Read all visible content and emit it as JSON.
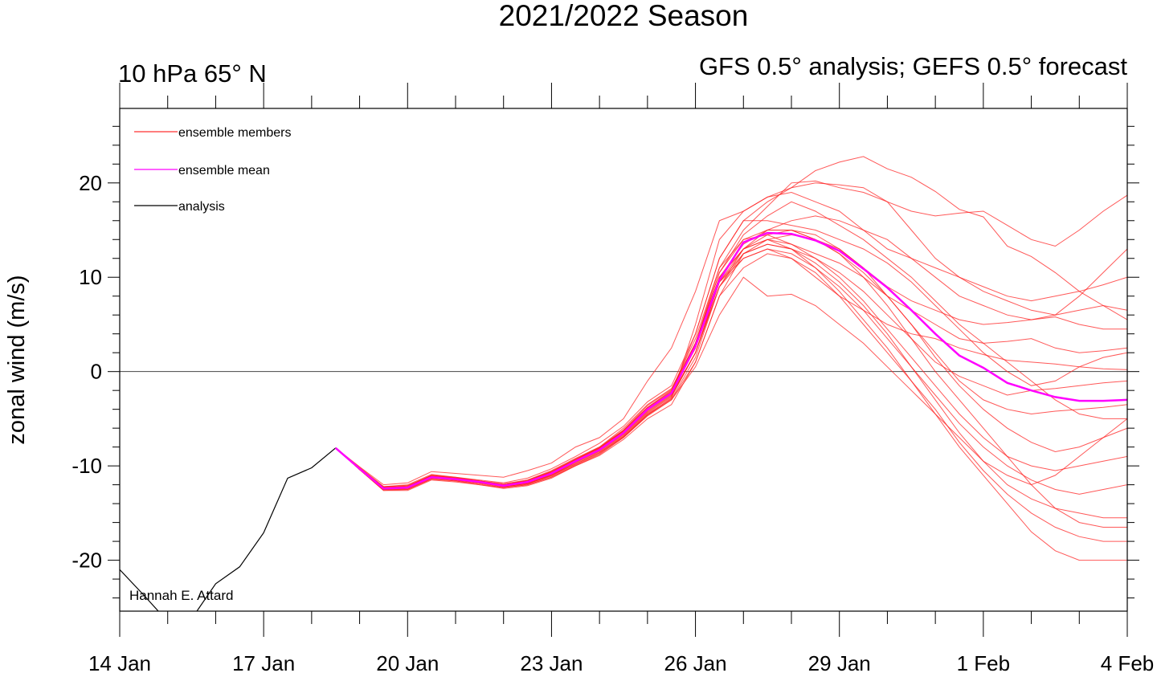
{
  "chart_data": {
    "type": "line",
    "title": "2021/2022 Season",
    "left_subtitle": "10 hPa 65° N",
    "right_subtitle": "GFS 0.5° analysis; GEFS 0.5° forecast",
    "ylabel": "zonal wind (m/s)",
    "xlabel": "",
    "credit": "Hannah E. Attard",
    "x_units": "days since 14 Jan",
    "xlim": [
      0,
      21
    ],
    "ylim": [
      -25.4,
      27.9
    ],
    "x_ticks": [
      {
        "day": 0,
        "label": "14 Jan"
      },
      {
        "day": 3,
        "label": "17 Jan"
      },
      {
        "day": 6,
        "label": "20 Jan"
      },
      {
        "day": 9,
        "label": "23 Jan"
      },
      {
        "day": 12,
        "label": "26 Jan"
      },
      {
        "day": 15,
        "label": "29 Jan"
      },
      {
        "day": 18,
        "label": "1 Feb"
      },
      {
        "day": 21,
        "label": "4 Feb"
      }
    ],
    "y_ticks": [
      -20,
      -10,
      0,
      10,
      20
    ],
    "y_tick_labels": [
      "-20",
      "-10",
      "0",
      "10",
      "20"
    ],
    "legend": {
      "placement": "top-left",
      "entries": [
        {
          "label": "ensemble members",
          "color": "#ff3030"
        },
        {
          "label": "ensemble mean",
          "color": "#ff00ff"
        },
        {
          "label": "analysis",
          "color": "#000000"
        }
      ]
    },
    "analysis": {
      "x": [
        0,
        0.5,
        1,
        1.5,
        2,
        2.5,
        3,
        3.5,
        4,
        4.5
      ],
      "y": [
        -21.0,
        -23.7,
        -26.5,
        -26.2,
        -22.5,
        -20.7,
        -17.1,
        -11.3,
        -10.2,
        -8.1
      ]
    },
    "forecast_x_start": 4.5,
    "forecast_x_step": 0.5,
    "ensemble_mean": [
      -8.1,
      -10.3,
      -12.4,
      -12.3,
      -11.2,
      -11.4,
      -11.7,
      -12.1,
      -11.7,
      -10.8,
      -9.5,
      -8.3,
      -6.5,
      -4.0,
      -2.3,
      2.7,
      9.7,
      13.7,
      14.7,
      14.6,
      13.9,
      12.8,
      10.9,
      8.9,
      6.5,
      4.0,
      1.7,
      0.4,
      -1.2,
      -2.0,
      -2.7,
      -3.1,
      -3.1,
      -3.0
    ],
    "ensemble_members": [
      [
        -8.1,
        -10.2,
        -12.2,
        -12.0,
        -10.9,
        -11.2,
        -11.5,
        -11.8,
        -11.3,
        -10.3,
        -9.0,
        -7.6,
        -5.8,
        -3.2,
        -1.5,
        4,
        12,
        16,
        18,
        19.5,
        20,
        19.8,
        19.5,
        18,
        17,
        16.5,
        16.8,
        17,
        15.5,
        14,
        13.3,
        15,
        17,
        18.7
      ],
      [
        -8.1,
        -10.4,
        -12.5,
        -12.5,
        -11.4,
        -11.6,
        -11.9,
        -12.3,
        -12.0,
        -11.2,
        -10.0,
        -8.8,
        -7.0,
        -4.6,
        -2.8,
        5,
        14,
        17,
        18.5,
        19.5,
        21.3,
        22.2,
        22.8,
        21.5,
        20.6,
        19.1,
        17.2,
        16.4,
        13.3,
        12.2,
        10.5,
        8.5,
        7,
        5.5
      ],
      [
        -8.1,
        -10.3,
        -12.3,
        -12.2,
        -11.0,
        -11.3,
        -11.6,
        -12.0,
        -11.5,
        -10.5,
        -9.2,
        -8.0,
        -6.0,
        -3.5,
        -1.8,
        3,
        11,
        15,
        17.5,
        20,
        20.2,
        19.5,
        19,
        18,
        15,
        12,
        10,
        8.5,
        7.5,
        6.5,
        6,
        8,
        10.5,
        13
      ],
      [
        -8.1,
        -10.1,
        -12.0,
        -11.8,
        -10.6,
        -10.8,
        -11.0,
        -11.2,
        -10.5,
        -9.7,
        -8.0,
        -7.0,
        -5.0,
        -1.0,
        2.5,
        8.5,
        16,
        17,
        18.5,
        19,
        18,
        17,
        15,
        13,
        12,
        11,
        10,
        9,
        8,
        7.5,
        8,
        8.5,
        9.2,
        10
      ],
      [
        -8.1,
        -10.3,
        -12.4,
        -12.3,
        -11.2,
        -11.5,
        -11.8,
        -12.2,
        -11.9,
        -11.0,
        -9.6,
        -8.4,
        -6.6,
        -4.2,
        -2.5,
        2,
        9,
        13,
        15,
        16,
        16.5,
        16,
        15,
        14,
        12,
        10,
        8,
        7,
        6,
        5.5,
        6,
        6.5,
        7,
        6.5
      ],
      [
        -8.1,
        -10.4,
        -12.6,
        -12.6,
        -11.5,
        -11.7,
        -12.0,
        -12.4,
        -12.1,
        -11.3,
        -10.0,
        -8.9,
        -7.2,
        -5.0,
        -3.5,
        1,
        8,
        12.5,
        14,
        14.5,
        14,
        13,
        11,
        9,
        7.5,
        6.5,
        5.5,
        5,
        5.2,
        5.5,
        5.8,
        5,
        4.5,
        4.5
      ],
      [
        -8.1,
        -10.2,
        -12.2,
        -12.1,
        -11.0,
        -11.2,
        -11.6,
        -12.0,
        -11.6,
        -10.6,
        -9.3,
        -8.1,
        -6.2,
        -3.8,
        -2.0,
        3,
        10,
        13,
        14,
        13.5,
        12.5,
        11.5,
        10,
        8,
        6.5,
        5,
        3.5,
        3.0,
        3.2,
        3.5,
        2.5,
        2,
        2.2,
        2.5
      ],
      [
        -8.1,
        -10.3,
        -12.4,
        -12.4,
        -11.3,
        -11.5,
        -11.8,
        -12.1,
        -11.8,
        -10.9,
        -9.6,
        -8.4,
        -6.7,
        -4.3,
        -2.6,
        2,
        9.5,
        12,
        13,
        12,
        10,
        8,
        6.5,
        5,
        4,
        3.5,
        2.5,
        1.8,
        1.2,
        1.0,
        0.8,
        0.5,
        0.3,
        0.2
      ],
      [
        -8.1,
        -10.4,
        -12.5,
        -12.4,
        -11.3,
        -11.4,
        -11.7,
        -12.1,
        -11.8,
        -11.0,
        -9.8,
        -8.6,
        -6.9,
        -4.5,
        -2.9,
        1.5,
        9,
        12.5,
        13.5,
        13,
        12,
        10.5,
        8.5,
        6,
        3.5,
        1,
        -0.5,
        -1.5,
        -2.5,
        -2.0,
        -1.8,
        -1.5,
        -1.2,
        -1.0
      ],
      [
        -8.1,
        -10.3,
        -12.3,
        -12.3,
        -11.2,
        -11.3,
        -11.6,
        -12.0,
        -11.6,
        -10.7,
        -9.4,
        -8.2,
        -6.4,
        -3.9,
        -2.2,
        3,
        10,
        13,
        14.5,
        15,
        14,
        12.5,
        10.5,
        8,
        5,
        2,
        -1,
        -3,
        -4,
        -4.5,
        -4.2,
        -4.0,
        -3.8,
        -3.5
      ],
      [
        -8.1,
        -10.3,
        -12.4,
        -12.3,
        -11.2,
        -11.4,
        -11.7,
        -12.1,
        -11.7,
        -10.8,
        -9.5,
        -8.3,
        -6.5,
        -4.0,
        -2.3,
        2.5,
        10,
        13.5,
        15,
        15,
        14.5,
        13,
        11,
        8,
        5,
        1.5,
        -1.5,
        -4,
        -6,
        -7.5,
        -8.5,
        -8,
        -7,
        -6
      ],
      [
        -8.1,
        -10.2,
        -12.3,
        -12.2,
        -11.1,
        -11.4,
        -11.7,
        -12.0,
        -11.6,
        -10.7,
        -9.3,
        -8.0,
        -6.2,
        -3.6,
        -1.9,
        3.5,
        11,
        14,
        14.5,
        13.5,
        12,
        10,
        7.5,
        4.5,
        1.5,
        -1.5,
        -4.5,
        -7,
        -9,
        -10,
        -10.5,
        -10,
        -9.5,
        -9
      ],
      [
        -8.1,
        -10.4,
        -12.5,
        -12.4,
        -11.3,
        -11.5,
        -11.8,
        -12.2,
        -11.9,
        -11.0,
        -9.7,
        -8.5,
        -6.8,
        -4.4,
        -2.7,
        2,
        9,
        12,
        13,
        12.5,
        11,
        9,
        6.5,
        3.5,
        0.5,
        -2.5,
        -5.5,
        -8,
        -10,
        -11.5,
        -12.5,
        -13,
        -12.5,
        -12
      ],
      [
        -8.1,
        -10.3,
        -12.3,
        -12.2,
        -11.1,
        -11.3,
        -11.6,
        -11.9,
        -11.5,
        -10.6,
        -9.3,
        -8.1,
        -6.3,
        -3.8,
        -2.1,
        2.5,
        9.5,
        12.5,
        13.5,
        13,
        11.5,
        9.5,
        7,
        4,
        0.5,
        -3,
        -6.5,
        -9.5,
        -12,
        -13.5,
        -14.5,
        -15,
        -15.5,
        -15.5
      ],
      [
        -8.1,
        -10.4,
        -12.6,
        -12.5,
        -11.4,
        -11.6,
        -12.0,
        -12.3,
        -12.0,
        -11.2,
        -9.9,
        -8.7,
        -7.0,
        -4.7,
        -3.0,
        1,
        8,
        11,
        12.5,
        12,
        10.5,
        8,
        5,
        2,
        -1,
        -4,
        -7.5,
        -10.5,
        -13,
        -15,
        -16.5,
        -17.5,
        -18,
        -18
      ],
      [
        -8.1,
        -10.3,
        -12.4,
        -12.3,
        -11.2,
        -11.5,
        -11.8,
        -12.1,
        -11.8,
        -10.9,
        -9.6,
        -8.4,
        -6.6,
        -4.1,
        -2.4,
        2,
        9.5,
        13,
        14,
        13,
        11,
        8.5,
        5.5,
        2.5,
        -1,
        -4.5,
        -8,
        -11,
        -14,
        -17,
        -19,
        -20,
        -20,
        -20
      ],
      [
        -8.1,
        -10.2,
        -12.2,
        -12.1,
        -11.0,
        -11.3,
        -11.6,
        -12.0,
        -11.6,
        -10.6,
        -9.3,
        -8.1,
        -6.3,
        -3.9,
        -2.2,
        3,
        10.5,
        14,
        15,
        15,
        14,
        12.5,
        10,
        7,
        3.5,
        0,
        -3,
        -6,
        -9,
        -12,
        -14.5,
        -16,
        -16.5,
        -16.5
      ],
      [
        -8.1,
        -10.4,
        -12.5,
        -12.3,
        -11.2,
        -11.4,
        -11.8,
        -12.2,
        -11.9,
        -11.1,
        -9.8,
        -8.6,
        -6.9,
        -4.6,
        -3.0,
        0.5,
        6,
        10,
        8,
        8.2,
        7,
        5,
        3,
        0.5,
        -2,
        -4.5,
        -7,
        -9.5,
        -11,
        -12,
        -11,
        -9,
        -7,
        -5
      ],
      [
        -8.1,
        -10.3,
        -12.3,
        -12.2,
        -11.1,
        -11.4,
        -11.7,
        -12.0,
        -11.6,
        -10.7,
        -9.4,
        -8.2,
        -6.4,
        -3.9,
        -2.2,
        4,
        12,
        16,
        16,
        15.5,
        15,
        14,
        13,
        11.5,
        9.5,
        7,
        4.5,
        2,
        0,
        -1.5,
        -1,
        0.5,
        1.5,
        2
      ],
      [
        -8.1,
        -10.3,
        -12.4,
        -12.3,
        -11.2,
        -11.4,
        -11.7,
        -12.1,
        -11.7,
        -10.8,
        -9.5,
        -8.3,
        -6.5,
        -4.0,
        -2.3,
        3,
        10.5,
        14.5,
        16.5,
        18,
        17,
        15.5,
        14,
        12,
        10,
        7.5,
        5,
        3,
        1,
        -1,
        -3,
        -4.5,
        -5,
        -5
      ]
    ],
    "grid": false,
    "zero_line": true
  }
}
